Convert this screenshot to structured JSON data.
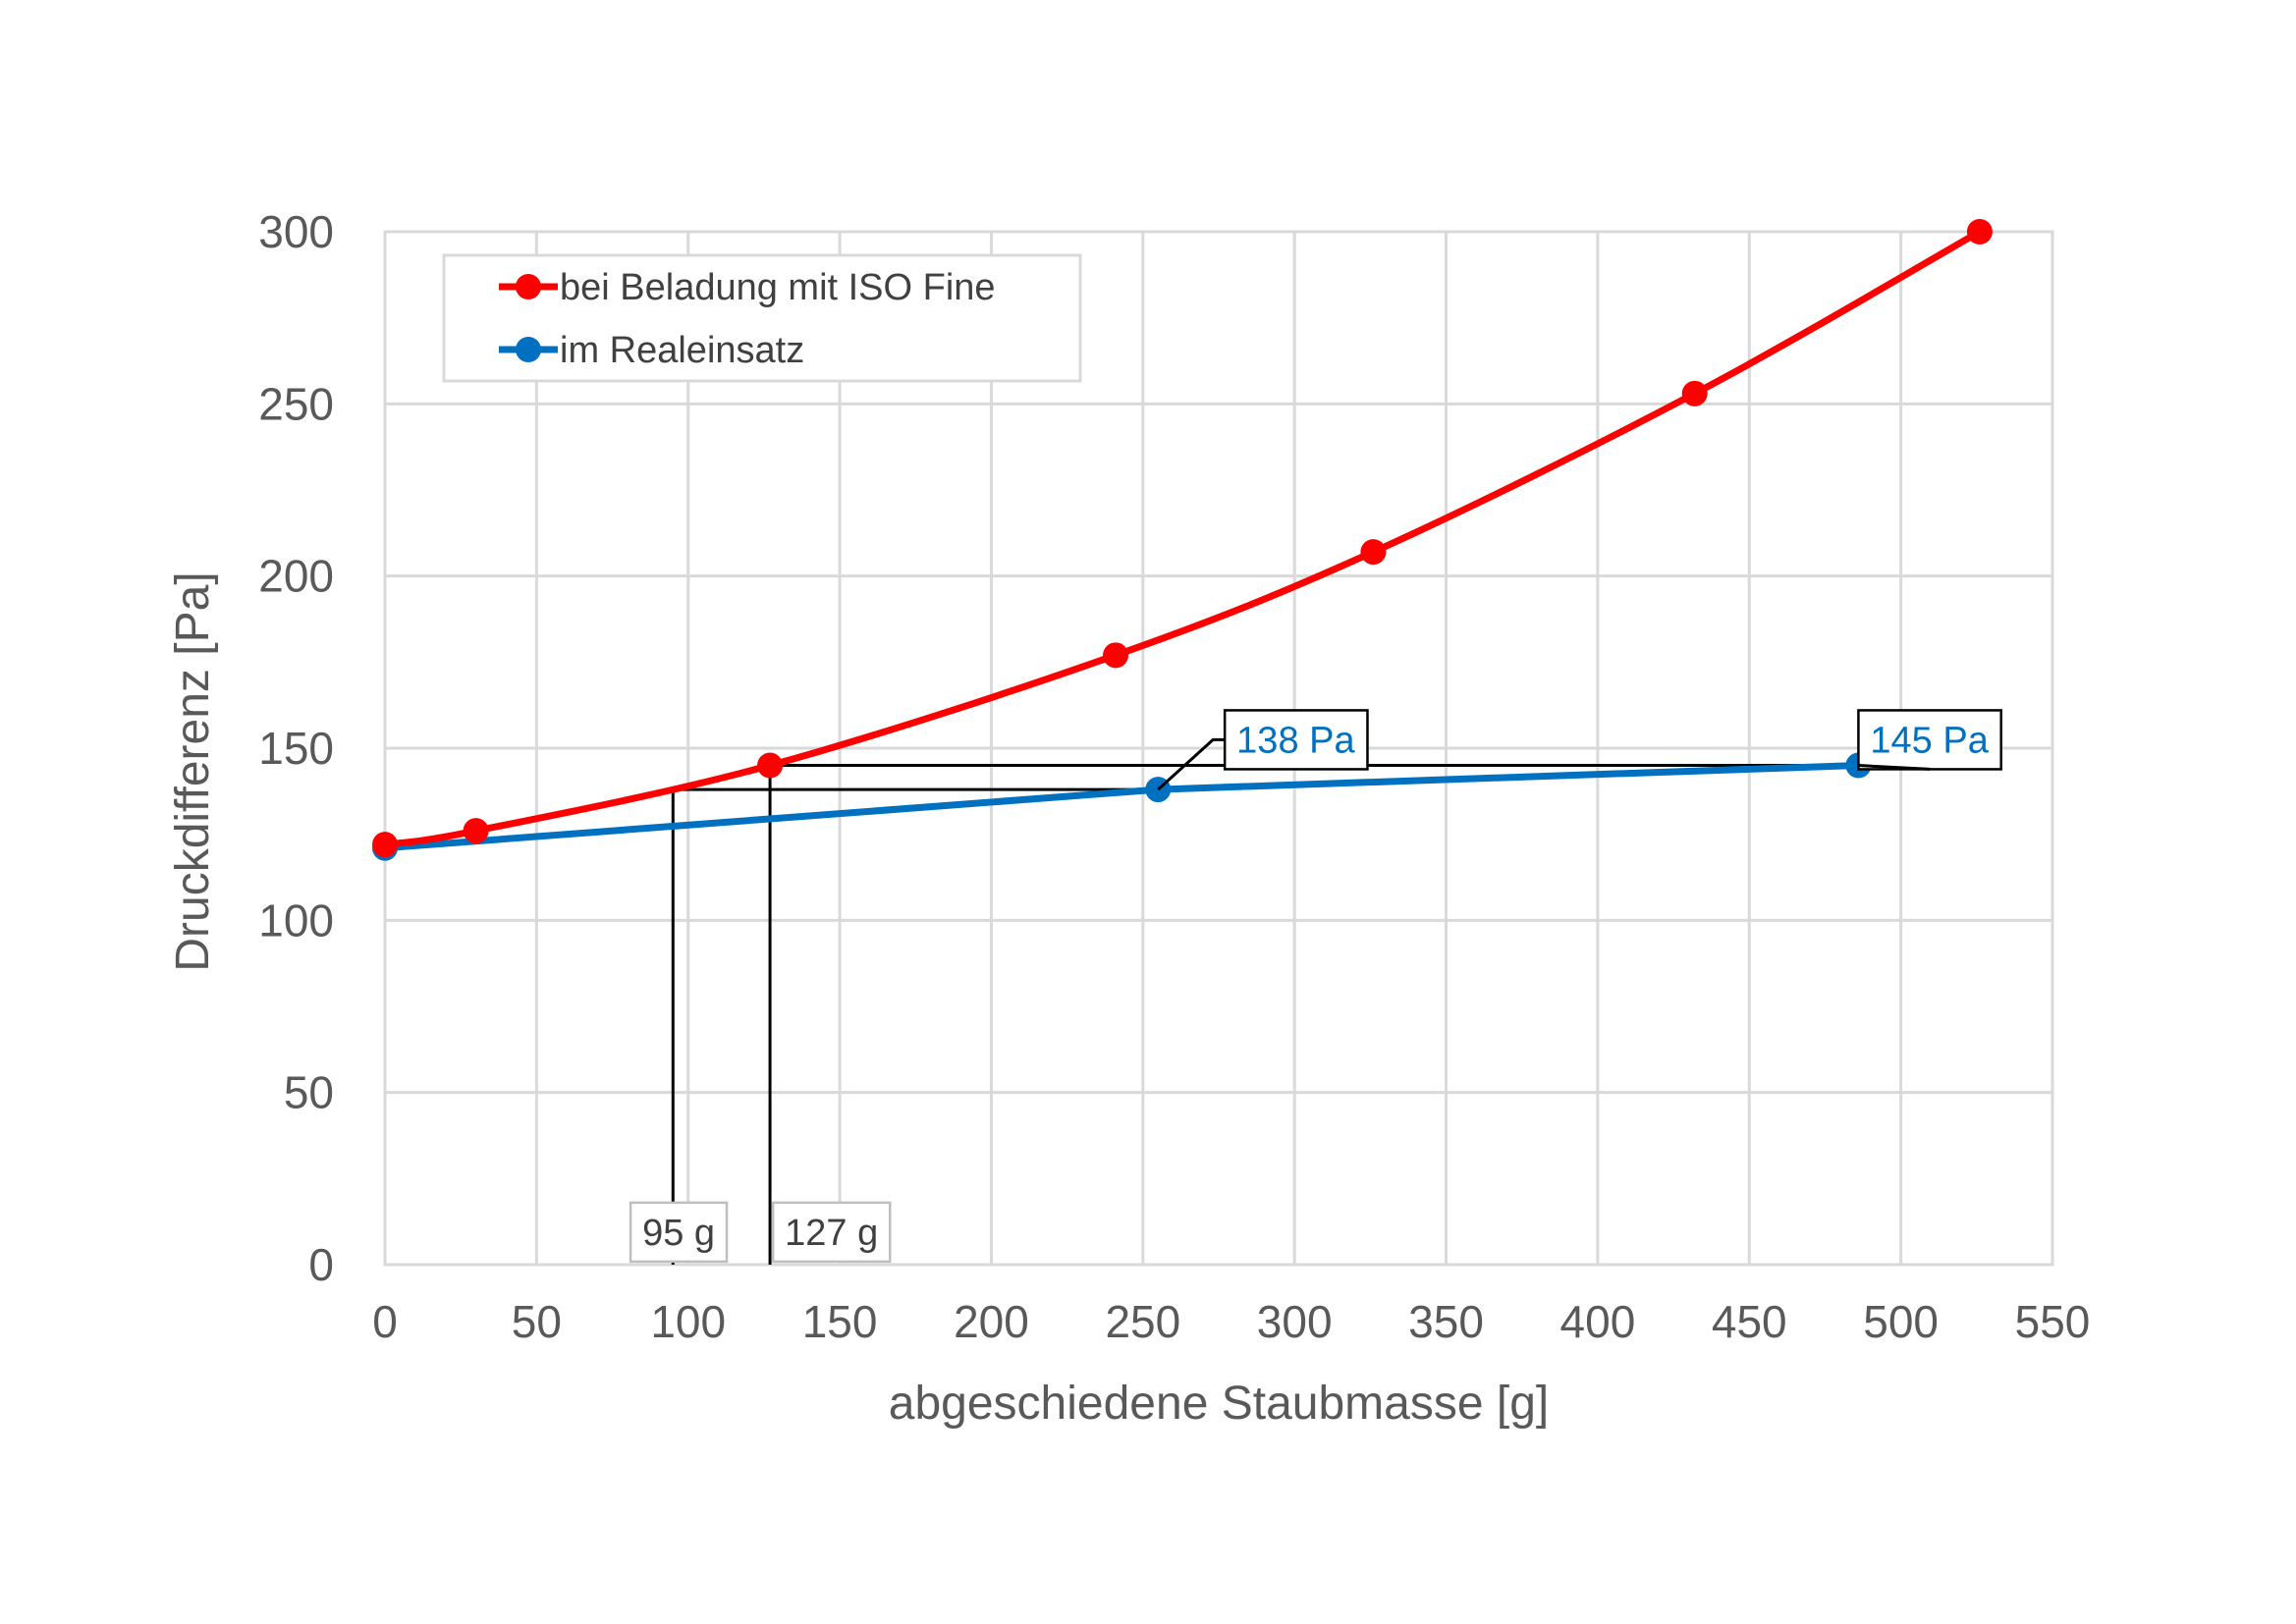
{
  "chart_data": {
    "type": "line",
    "xlabel": "abgeschiedene Staubmasse [g]",
    "ylabel": "Druckdifferenz [Pa]",
    "xlim": [
      0,
      550
    ],
    "ylim": [
      0,
      300
    ],
    "x_ticks": [
      0,
      50,
      100,
      150,
      200,
      250,
      300,
      350,
      400,
      450,
      500,
      550
    ],
    "y_ticks": [
      0,
      50,
      100,
      150,
      200,
      250,
      300
    ],
    "x_tick_labels": [
      "0",
      "50",
      "100",
      "150",
      "200",
      "250",
      "300",
      "350",
      "400",
      "450",
      "500",
      "550"
    ],
    "y_tick_labels": [
      "0",
      "50",
      "100",
      "150",
      "200",
      "250",
      "300"
    ],
    "grid": true,
    "legend_position": "top-left",
    "series": [
      {
        "name": "bei Beladung mit ISO Fine",
        "color": "#ff0000",
        "smooth": true,
        "points": [
          [
            0,
            122
          ],
          [
            30,
            126
          ],
          [
            127,
            145
          ],
          [
            241,
            177
          ],
          [
            326,
            207
          ],
          [
            432,
            253
          ],
          [
            526,
            300
          ]
        ]
      },
      {
        "name": "im Realeinsatz",
        "color": "#0070c0",
        "smooth": false,
        "points": [
          [
            0,
            121
          ],
          [
            255,
            138
          ],
          [
            486,
            145
          ]
        ]
      }
    ],
    "reference_lines": [
      {
        "x": 95,
        "y": 138
      },
      {
        "x": 127,
        "y": 145
      }
    ],
    "annotations": [
      {
        "text": "138 Pa",
        "target": [
          255,
          138
        ],
        "color": "#0070c0",
        "box_anchor": [
          277,
          161
        ],
        "kind": "value"
      },
      {
        "text": "145 Pa",
        "target": [
          486,
          145
        ],
        "color": "#0070c0",
        "box_anchor": [
          486,
          161
        ],
        "kind": "value"
      },
      {
        "text": "95 g",
        "target": [
          95,
          0
        ],
        "color": "#404040",
        "box_anchor": [
          81,
          18
        ],
        "kind": "x"
      },
      {
        "text": "127 g",
        "target": [
          127,
          0
        ],
        "color": "#404040",
        "box_anchor": [
          128,
          18
        ],
        "kind": "x"
      }
    ]
  }
}
